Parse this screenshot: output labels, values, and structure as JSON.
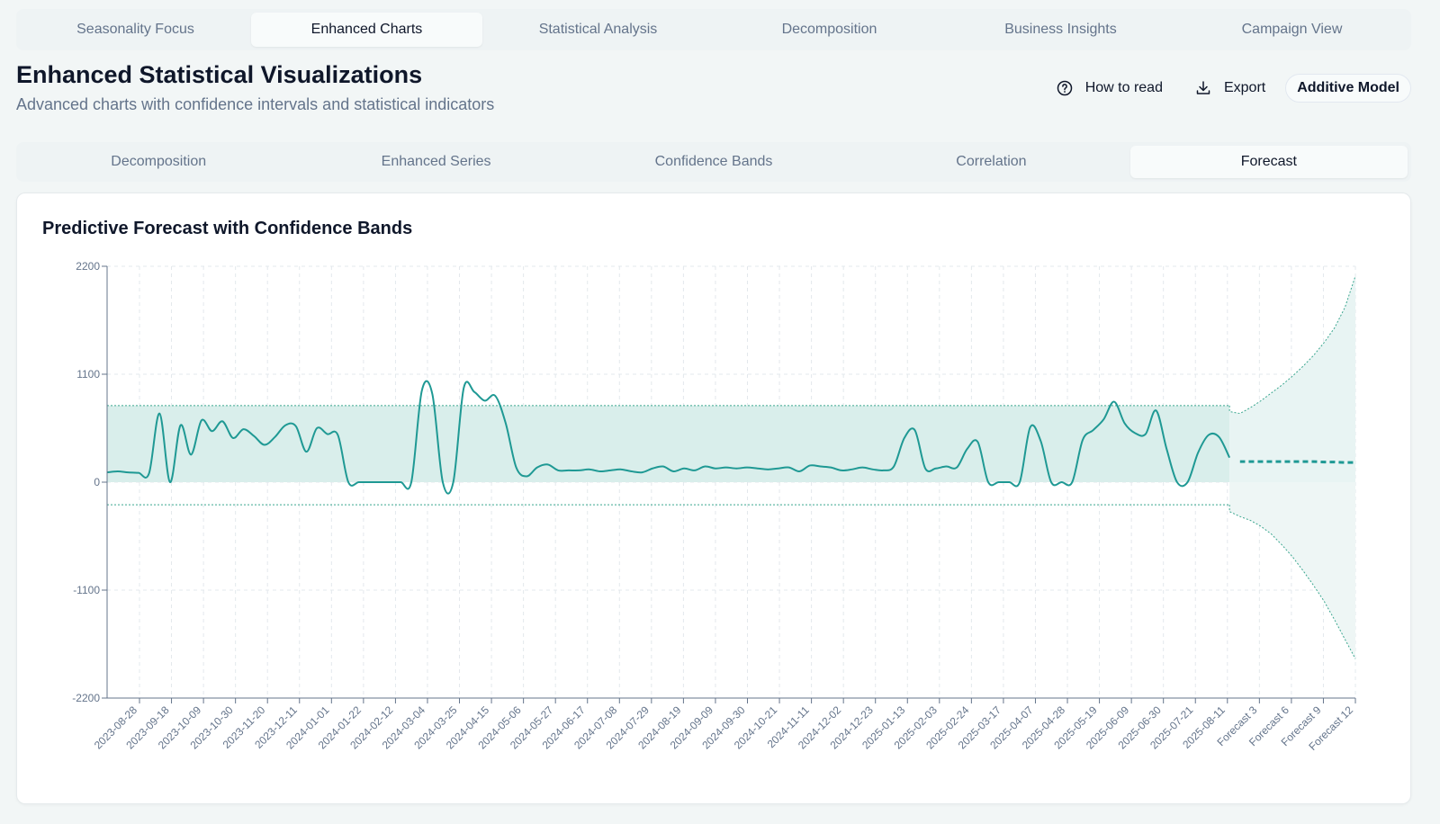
{
  "top_tabs": [
    {
      "label": "Seasonality Focus",
      "active": false
    },
    {
      "label": "Enhanced Charts",
      "active": true
    },
    {
      "label": "Statistical Analysis",
      "active": false
    },
    {
      "label": "Decomposition",
      "active": false
    },
    {
      "label": "Business Insights",
      "active": false
    },
    {
      "label": "Campaign View",
      "active": false
    }
  ],
  "header": {
    "title": "Enhanced Statistical Visualizations",
    "subtitle": "Advanced charts with confidence intervals and statistical indicators",
    "how_to_read_label": "How to read",
    "export_label": "Export",
    "model_badge": "Additive Model"
  },
  "sub_tabs": [
    {
      "label": "Decomposition",
      "active": false
    },
    {
      "label": "Enhanced Series",
      "active": false
    },
    {
      "label": "Confidence Bands",
      "active": false
    },
    {
      "label": "Correlation",
      "active": false
    },
    {
      "label": "Forecast",
      "active": true
    }
  ],
  "chart_data": {
    "type": "line",
    "title": "Predictive Forecast with Confidence Bands",
    "ylim": [
      -2200,
      2200
    ],
    "yticks": [
      2200,
      1100,
      0,
      -1100,
      -2200
    ],
    "grid": true,
    "x_tick_labels": [
      "2023-08-28",
      "2023-09-18",
      "2023-10-09",
      "2023-10-30",
      "2023-11-20",
      "2023-12-11",
      "2024-01-01",
      "2024-01-22",
      "2024-02-12",
      "2024-03-04",
      "2024-03-25",
      "2024-04-15",
      "2024-05-06",
      "2024-05-27",
      "2024-06-17",
      "2024-07-08",
      "2024-07-29",
      "2024-08-19",
      "2024-09-09",
      "2024-09-30",
      "2024-10-21",
      "2024-11-11",
      "2024-12-02",
      "2024-12-23",
      "2025-01-13",
      "2025-02-03",
      "2025-02-24",
      "2025-03-17",
      "2025-04-07",
      "2025-04-28",
      "2025-05-19",
      "2025-06-09",
      "2025-06-30",
      "2025-07-21",
      "2025-08-11",
      "Forecast 3",
      "Forecast 6",
      "Forecast 9",
      "Forecast 12"
    ],
    "historical": [
      100,
      110,
      100,
      95,
      90,
      700,
      0,
      580,
      280,
      630,
      520,
      620,
      450,
      540,
      470,
      380,
      460,
      580,
      570,
      310,
      550,
      490,
      480,
      0,
      0,
      0,
      0,
      0,
      0,
      0,
      930,
      900,
      0,
      0,
      960,
      920,
      830,
      880,
      600,
      150,
      60,
      150,
      180,
      120,
      120,
      120,
      130,
      110,
      120,
      130,
      110,
      100,
      140,
      160,
      110,
      140,
      120,
      160,
      140,
      150,
      140,
      150,
      140,
      130,
      140,
      150,
      110,
      170,
      160,
      150,
      120,
      130,
      150,
      130,
      120,
      160,
      450,
      530,
      140,
      140,
      160,
      150,
      340,
      410,
      0,
      0,
      0,
      0,
      560,
      420,
      0,
      0,
      0,
      430,
      530,
      640,
      820,
      600,
      500,
      490,
      730,
      340,
      0,
      0,
      300,
      480,
      460,
      250
    ],
    "historical_upper": 780,
    "historical_lower": -230,
    "forecast": [
      210,
      210,
      210,
      210,
      210,
      210,
      210,
      210,
      210,
      205,
      205,
      200,
      200
    ],
    "forecast_upper": [
      720,
      700,
      760,
      830,
      910,
      990,
      1080,
      1180,
      1290,
      1420,
      1570,
      1780,
      2100
    ],
    "forecast_lower": [
      -300,
      -350,
      -390,
      -450,
      -530,
      -640,
      -760,
      -900,
      -1050,
      -1210,
      -1400,
      -1600,
      -1800
    ],
    "colors": {
      "line": "#1f9994",
      "band": "#d9eeeb",
      "forecast_band": "#e8f4f3",
      "band_edge": "#3aa68f"
    }
  }
}
